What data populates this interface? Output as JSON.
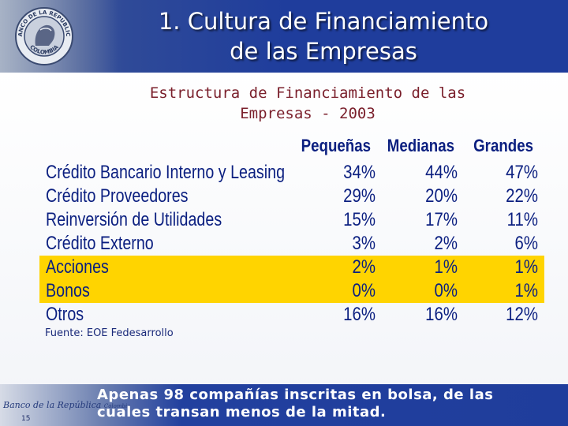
{
  "header": {
    "title_line1": "1. Cultura de Financiamiento",
    "title_line2": "de las Empresas"
  },
  "subtitle": {
    "line1": "Estructura de Financiamiento de las",
    "line2": "Empresas - 2003"
  },
  "table": {
    "columns": [
      "Pequeñas",
      "Medianas",
      "Grandes"
    ],
    "rows": [
      {
        "label": "Crédito Bancario Interno y Leasing",
        "values": [
          "34%",
          "44%",
          "47%"
        ],
        "highlight": false
      },
      {
        "label": "Crédito Proveedores",
        "values": [
          "29%",
          "20%",
          "22%"
        ],
        "highlight": false
      },
      {
        "label": "Reinversión de Utilidades",
        "values": [
          "15%",
          "17%",
          "11%"
        ],
        "highlight": false
      },
      {
        "label": "Crédito Externo",
        "values": [
          "3%",
          "2%",
          "6%"
        ],
        "highlight": false
      },
      {
        "label": "Acciones",
        "values": [
          "2%",
          "1%",
          "1%"
        ],
        "highlight": true
      },
      {
        "label": "Bonos",
        "values": [
          "0%",
          "0%",
          "1%"
        ],
        "highlight": true
      },
      {
        "label": "Otros",
        "values": [
          "16%",
          "16%",
          "12%"
        ],
        "highlight": false
      }
    ],
    "highlight_color": "#ffd400",
    "text_color": "#0b1f80"
  },
  "source": "Fuente: EOE Fedesarrollo",
  "footer": {
    "text_line1": "Apenas 98 compañías inscritas en bolsa, de las",
    "text_line2": "cuales transan menos de la mitad.",
    "page_number": "15",
    "logo_text": "Banco de la República",
    "logo_subtext": "Colombia"
  },
  "logo": {
    "top_text": "BANCO DE LA REPUBLICA",
    "bottom_text": "COLOMBIA",
    "icon": "bank-seal-icon"
  },
  "colors": {
    "header_blue": "#1f3d9c",
    "subtitle_maroon": "#7a1f2b"
  }
}
